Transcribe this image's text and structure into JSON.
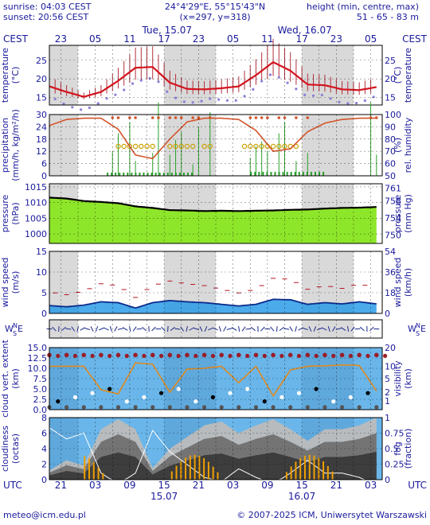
{
  "header": {
    "sunrise": "sunrise: 04:03 CEST",
    "sunset": "sunset: 20:56 CEST",
    "coords": "24°4'29\"E, 55°15'43\"N",
    "grid": "(x=297, y=318)",
    "height_title": "height (min, centre, max)",
    "height_values": "51 - 65 - 83 m"
  },
  "top_axis": {
    "tz_left": "CEST",
    "tz_right": "CEST",
    "day1": "Tue, 15.07",
    "day2": "Wed, 16.07",
    "hours": [
      "23",
      "05",
      "11",
      "17",
      "23",
      "05",
      "11",
      "17",
      "23",
      "05"
    ]
  },
  "bottom_axis": {
    "tz_left": "UTC",
    "tz_right": "UTC",
    "hours": [
      "21",
      "03",
      "09",
      "15",
      "21",
      "03",
      "09",
      "15",
      "21",
      "03"
    ],
    "day1": "15.07",
    "day2": "16.07"
  },
  "footer": {
    "left": "meteo@icm.edu.pl",
    "right": "© 2007-2025 ICM, Uniwersytet Warszawski"
  },
  "colors": {
    "text": "#1a1a9c",
    "night": "#d9d9d9",
    "temp": "#d4141e",
    "humidity": "#d2542a",
    "pressure_fill": "#8ee62a",
    "wind_fill": "#1e96e6",
    "cloud_bg": "#6ab6ea"
  },
  "panels": {
    "temperature": {
      "left_label": "temperature",
      "left_unit": "(°C)",
      "right_label": "temperature",
      "right_unit": "(°C)",
      "ticks": [
        "25",
        "20",
        "15"
      ]
    },
    "precipitation": {
      "left_label": "precipitation",
      "left_unit": "(mm/h, kg/m²/h)",
      "right_label": "rel. humidity",
      "right_unit": "(%)",
      "left_ticks": [
        "30",
        "24",
        "18",
        "12",
        "6",
        "0"
      ],
      "right_ticks": [
        "100",
        "90",
        "80",
        "70",
        "60",
        "50"
      ]
    },
    "pressure": {
      "left_label": "pressure",
      "left_unit": "(hPa)",
      "right_label": "(mm Hg)",
      "right_unit": "pressure",
      "left_ticks": [
        "1015",
        "1010",
        "1005",
        "1000"
      ],
      "right_ticks": [
        "761",
        "758",
        "754",
        "750"
      ]
    },
    "wind": {
      "left_label": "wind speed",
      "left_unit": "(m/s)",
      "right_label": "(km/h)",
      "right_unit": "wind speed",
      "left_ticks": [
        "15",
        "10",
        "5",
        "0"
      ],
      "right_ticks": [
        "54",
        "36",
        "18",
        "0"
      ]
    },
    "direction": {
      "w": "W",
      "n": "N",
      "s": "S",
      "e": "E"
    },
    "cloud_extent": {
      "left_label": "cloud vert. extent",
      "left_unit": "(km)",
      "right_label": "(km)",
      "right_unit": "visibility",
      "left_ticks": [
        "15.0",
        "12.5",
        "10.0",
        "7.5",
        "5.0",
        "2.5",
        "0.0"
      ],
      "right_ticks": [
        "20",
        "10",
        "5",
        "2",
        "1"
      ]
    },
    "cloudiness": {
      "left_label": "cloudiness",
      "left_unit": "(octas)",
      "right_label": "(fraction)",
      "right_unit": "fog",
      "left_ticks": [
        "8",
        "6",
        "4",
        "2",
        "0"
      ],
      "right_ticks": [
        "1",
        "0.75",
        "0.5",
        "0.25",
        "0"
      ]
    }
  },
  "chart_data": [
    {
      "type": "line",
      "title": "temperature",
      "ylabel": "temperature (°C)",
      "ylim": [
        13,
        29
      ],
      "x_hours": [
        0,
        3,
        6,
        9,
        12,
        15,
        18,
        21,
        24,
        27,
        30,
        33,
        36,
        39,
        42,
        45,
        48,
        51,
        54,
        57
      ],
      "series": [
        {
          "name": "temperature",
          "values": [
            18,
            16.5,
            15.2,
            16.5,
            19.5,
            23,
            23.2,
            19,
            17.3,
            17.2,
            17.5,
            18,
            21,
            24.5,
            22.2,
            18.5,
            18.3,
            17.2,
            17,
            17.8
          ]
        }
      ]
    },
    {
      "type": "line",
      "title": "precipitation",
      "ylabel": "precipitation (mm/h, kg/m²/h)",
      "ylim": [
        0,
        30
      ],
      "x_hours": [
        0,
        3,
        6,
        9,
        12,
        15,
        18,
        21,
        24,
        27,
        30,
        33,
        36,
        39,
        42,
        45,
        48,
        51,
        54,
        57
      ],
      "series": [
        {
          "name": "rel. humidity",
          "values": [
            91,
            96,
            97,
            97,
            88,
            67,
            64,
            80,
            94,
            97,
            97,
            96,
            87,
            70,
            72,
            86,
            93,
            96,
            97,
            97
          ]
        }
      ]
    },
    {
      "type": "area",
      "title": "pressure",
      "ylabel": "pressure (hPa)",
      "ylim": [
        997,
        1016
      ],
      "x_hours": [
        0,
        3,
        6,
        9,
        12,
        15,
        18,
        21,
        24,
        27,
        30,
        33,
        36,
        39,
        42,
        45,
        48,
        51,
        54,
        57
      ],
      "series": [
        {
          "name": "pressure",
          "values": [
            1011.6,
            1011.3,
            1010.5,
            1010.2,
            1009.8,
            1008.8,
            1008.3,
            1007.6,
            1007.5,
            1007.3,
            1007.4,
            1007.3,
            1007.4,
            1007.5,
            1007.7,
            1007.8,
            1008.1,
            1008.3,
            1008.4,
            1008.6
          ]
        }
      ]
    },
    {
      "type": "area",
      "title": "wind speed",
      "ylabel": "wind speed (m/s)",
      "ylim": [
        0,
        15
      ],
      "x_hours": [
        0,
        3,
        6,
        9,
        12,
        15,
        18,
        21,
        24,
        27,
        30,
        33,
        36,
        39,
        42,
        45,
        48,
        51,
        54,
        57
      ],
      "series": [
        {
          "name": "wind speed",
          "values": [
            1.9,
            1.6,
            2.0,
            2.8,
            2.6,
            1.3,
            2.6,
            3.1,
            2.8,
            2.6,
            2.2,
            1.8,
            2.2,
            3.4,
            3.3,
            2.2,
            2.6,
            2.3,
            2.8,
            2.3
          ]
        }
      ]
    },
    {
      "type": "line",
      "title": "cloud vert. extent",
      "ylabel": "cloud vert. extent (km)",
      "ylim": [
        0,
        15
      ],
      "x_hours": [
        0,
        3,
        6,
        9,
        12,
        15,
        18,
        21,
        24,
        27,
        30,
        33,
        36,
        39,
        42,
        45,
        48,
        51,
        54,
        57
      ],
      "series": [
        {
          "name": "visibility",
          "values": [
            10.5,
            10.5,
            10.5,
            4.8,
            3.8,
            11.3,
            11.0,
            4.2,
            9.8,
            10.0,
            10.5,
            6.5,
            10.5,
            3.3,
            9.6,
            10.5,
            10.6,
            10.8,
            10.7,
            4.5
          ]
        }
      ]
    },
    {
      "type": "area",
      "title": "cloudiness",
      "ylabel": "cloudiness (octas)",
      "ylim": [
        0,
        8
      ],
      "x_hours": [
        0,
        3,
        6,
        9,
        12,
        15,
        18,
        21,
        24,
        27,
        30,
        33,
        36,
        39,
        42,
        45,
        48,
        51,
        54,
        57
      ],
      "series": [
        {
          "name": "cloudiness",
          "values": [
            1.2,
            2.5,
            1.8,
            6.5,
            7.8,
            6.5,
            1.5,
            4.0,
            5.5,
            7.0,
            7.5,
            6.0,
            7.0,
            7.8,
            6.5,
            5.0,
            6.5,
            6.5,
            7.0,
            8.0
          ]
        }
      ]
    }
  ]
}
